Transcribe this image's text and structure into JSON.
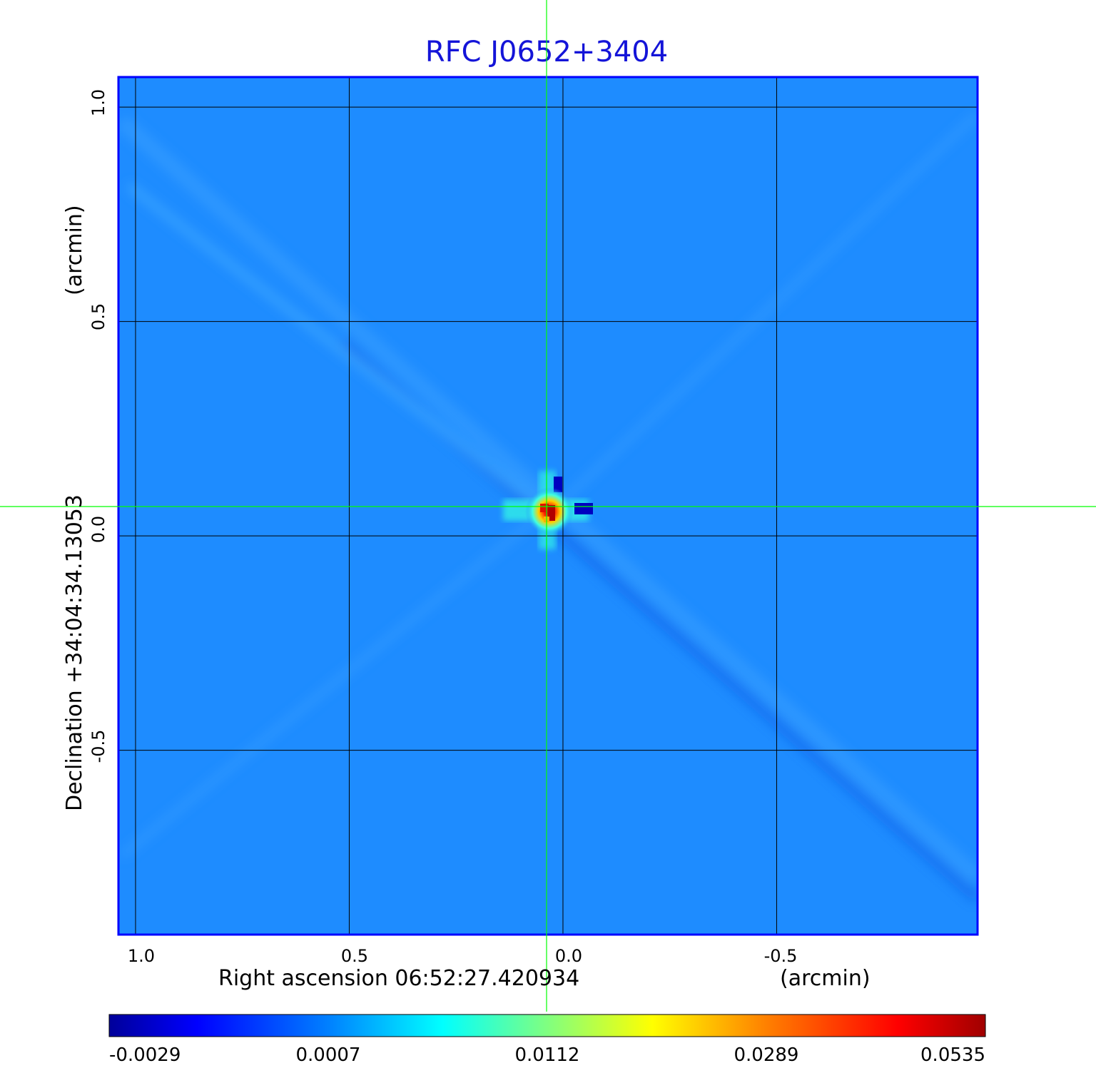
{
  "title": "RFC J0652+3404",
  "x_axis": {
    "label": "Right ascension  06:52:27.420934",
    "unit": "(arcmin)",
    "ticks": [
      "1.0",
      "0.5",
      "0.0",
      "-0.5"
    ],
    "tick_values": [
      1.0,
      0.5,
      0.0,
      -0.5
    ],
    "range": [
      1.04,
      -0.97
    ]
  },
  "y_axis": {
    "label": "Declination  +34:04:34.13053",
    "unit": "(arcmin)",
    "ticks": [
      "1.0",
      "0.5",
      "0.0",
      "-0.5"
    ],
    "tick_values": [
      1.0,
      0.5,
      0.0,
      -0.5
    ],
    "range": [
      -0.93,
      1.07
    ]
  },
  "colorbar": {
    "ticks": [
      "-0.0029",
      "0.0007",
      "0.0112",
      "0.0289",
      "0.0535"
    ],
    "colors": [
      "#00009a",
      "#0000ff",
      "#0080ff",
      "#00ffff",
      "#80ff80",
      "#ffff00",
      "#ff8000",
      "#ff0000",
      "#a00000"
    ]
  },
  "colors": {
    "background_map": "#1e8cff",
    "title": "#1414d8",
    "frame": "#0000ff",
    "crosshair": "#00ff00",
    "grid": "#000000"
  },
  "source_peak": {
    "ra_offset": 0.04,
    "dec_offset": 0.06
  },
  "crosshair": {
    "ra_offset": 0.04,
    "dec_offset": 0.07
  }
}
